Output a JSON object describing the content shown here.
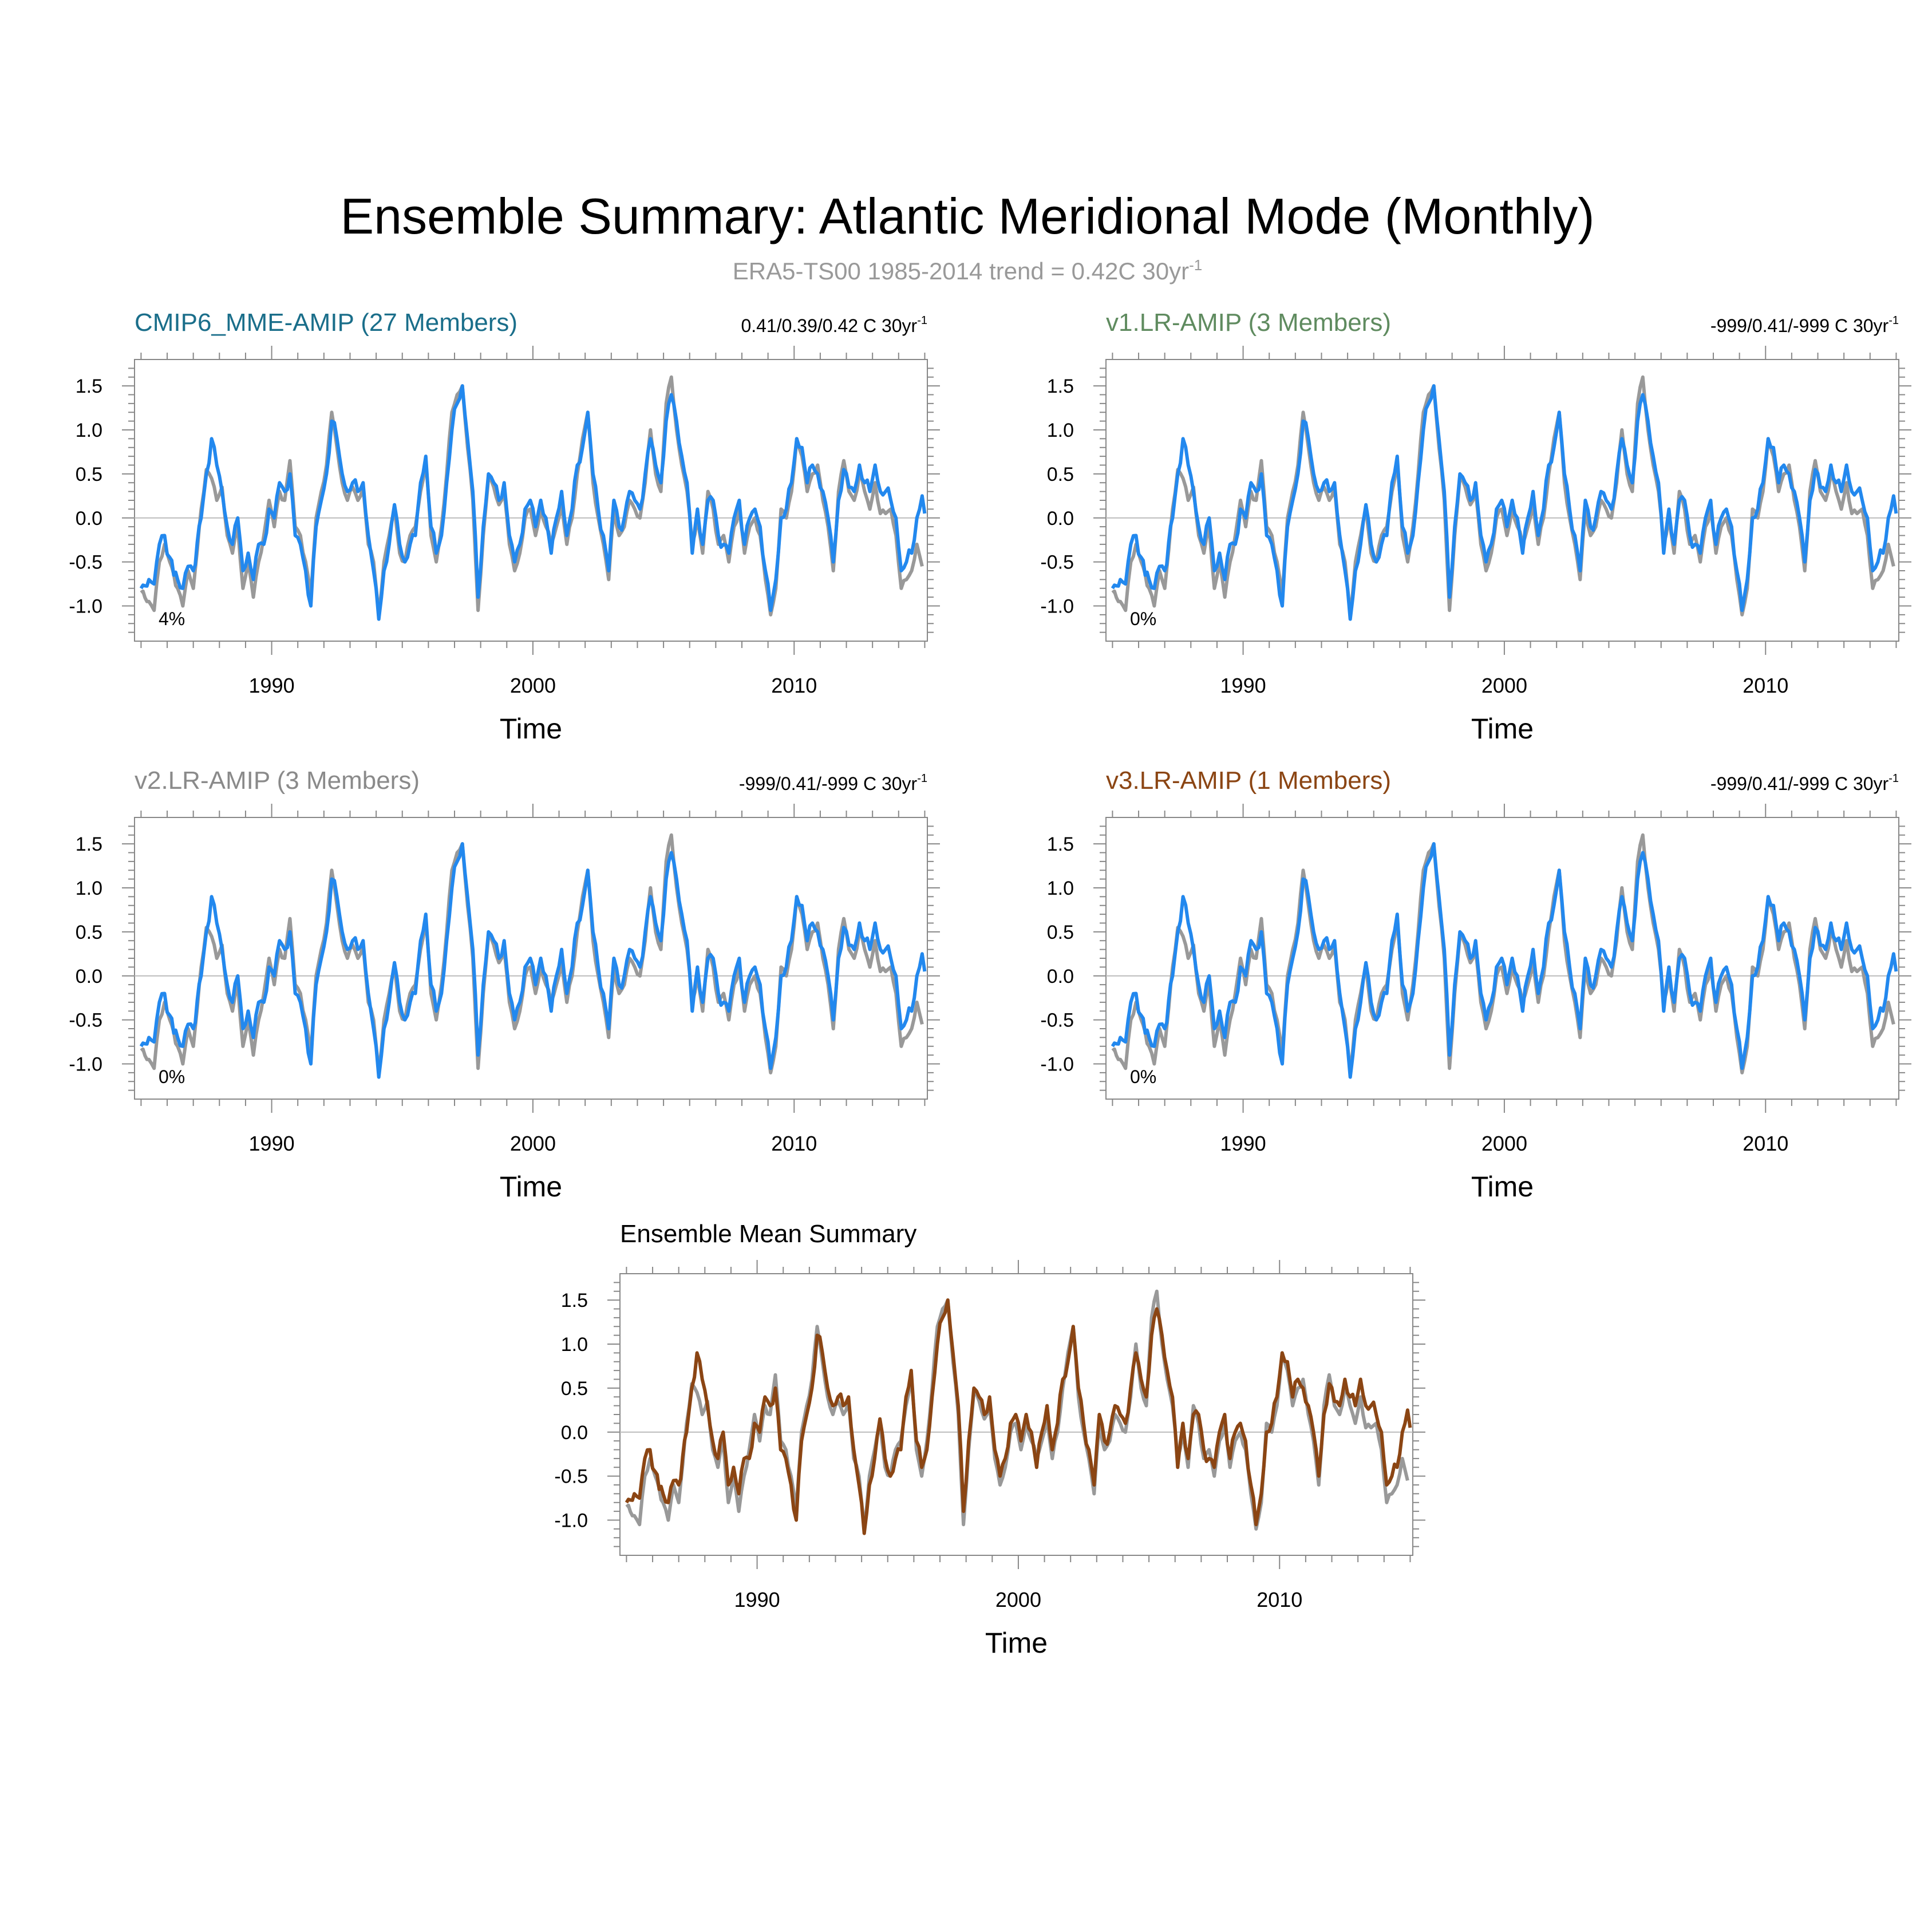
{
  "title": "Ensemble Summary: Atlantic Meridional Mode (Monthly)",
  "subtitle": {
    "text": "ERA5-TS00 1985-2014 trend = 0.42C 30yr",
    "superscript": "-1",
    "color": "#999999"
  },
  "colors": {
    "observation": "#999999",
    "model_line": "#2288ee",
    "mean_line": "#8b4513",
    "axis": "#888888",
    "zero_line": "#bbbbbb"
  },
  "chart_data": [
    {
      "type": "line",
      "title": "CMIP6_MME-AMIP (27 Members)",
      "title_color": "#1a6e8a",
      "trend_label": "0.41/0.39/0.42 C 30yr",
      "trend_superscript": "-1",
      "percent_label": "4%",
      "xlabel": "Time",
      "ylabel": "",
      "xlim": [
        1984.75,
        2015.1
      ],
      "ylim": [
        -1.4,
        1.8
      ],
      "xticks": [
        1990,
        2000,
        2010
      ],
      "yticks": [
        1.5,
        1.0,
        0.5,
        0.0,
        -0.5,
        -1.0
      ],
      "ytick_labels": [
        "1.5",
        "1.0",
        "0.5",
        "0.0",
        "-0.5",
        "-1.0"
      ],
      "grid": false,
      "series_style": "model"
    },
    {
      "type": "line",
      "title": "v1.LR-AMIP (3 Members)",
      "title_color": "#5f8b5f",
      "trend_label": "-999/0.41/-999 C 30yr",
      "trend_superscript": "-1",
      "percent_label": "0%",
      "xlabel": "Time",
      "ylabel": "",
      "xlim": [
        1984.75,
        2015.1
      ],
      "ylim": [
        -1.4,
        1.8
      ],
      "xticks": [
        1990,
        2000,
        2010
      ],
      "yticks": [
        1.5,
        1.0,
        0.5,
        0.0,
        -0.5,
        -1.0
      ],
      "ytick_labels": [
        "1.5",
        "1.0",
        "0.5",
        "0.0",
        "-0.5",
        "-1.0"
      ],
      "grid": false,
      "series_style": "model"
    },
    {
      "type": "line",
      "title": "v2.LR-AMIP (3 Members)",
      "title_color": "#8a8a8a",
      "trend_label": "-999/0.41/-999 C 30yr",
      "trend_superscript": "-1",
      "percent_label": "0%",
      "xlabel": "Time",
      "ylabel": "",
      "xlim": [
        1984.75,
        2015.1
      ],
      "ylim": [
        -1.4,
        1.8
      ],
      "xticks": [
        1990,
        2000,
        2010
      ],
      "yticks": [
        1.5,
        1.0,
        0.5,
        0.0,
        -0.5,
        -1.0
      ],
      "ytick_labels": [
        "1.5",
        "1.0",
        "0.5",
        "0.0",
        "-0.5",
        "-1.0"
      ],
      "grid": false,
      "series_style": "model"
    },
    {
      "type": "line",
      "title": "v3.LR-AMIP (1 Members)",
      "title_color": "#8b4513",
      "trend_label": "-999/0.41/-999 C 30yr",
      "trend_superscript": "-1",
      "percent_label": "0%",
      "xlabel": "Time",
      "ylabel": "",
      "xlim": [
        1984.75,
        2015.1
      ],
      "ylim": [
        -1.4,
        1.8
      ],
      "xticks": [
        1990,
        2000,
        2010
      ],
      "yticks": [
        1.5,
        1.0,
        0.5,
        0.0,
        -0.5,
        -1.0
      ],
      "ytick_labels": [
        "1.5",
        "1.0",
        "0.5",
        "0.0",
        "-0.5",
        "-1.0"
      ],
      "grid": false,
      "series_style": "model"
    },
    {
      "type": "line",
      "title": "Ensemble Mean Summary",
      "title_color": "#000000",
      "trend_label": "",
      "trend_superscript": "",
      "percent_label": "",
      "xlabel": "Time",
      "ylabel": "",
      "xlim": [
        1984.75,
        2015.1
      ],
      "ylim": [
        -1.4,
        1.8
      ],
      "xticks": [
        1990,
        2000,
        2010
      ],
      "yticks": [
        1.5,
        1.0,
        0.5,
        0.0,
        -0.5,
        -1.0
      ],
      "ytick_labels": [
        "1.5",
        "1.0",
        "0.5",
        "0.0",
        "-0.5",
        "-1.0"
      ],
      "grid": false,
      "series_style": "mean"
    }
  ],
  "series_data": {
    "observation_keypoints": [
      [
        1985.0,
        -0.85
      ],
      [
        1985.3,
        -0.95
      ],
      [
        1985.5,
        -1.05
      ],
      [
        1985.7,
        -0.5
      ],
      [
        1985.9,
        -0.3
      ],
      [
        1986.1,
        -0.5
      ],
      [
        1986.4,
        -0.8
      ],
      [
        1986.6,
        -1.0
      ],
      [
        1986.8,
        -0.6
      ],
      [
        1987.0,
        -0.8
      ],
      [
        1987.3,
        0.1
      ],
      [
        1987.5,
        0.55
      ],
      [
        1987.7,
        0.45
      ],
      [
        1987.9,
        0.2
      ],
      [
        1988.1,
        0.35
      ],
      [
        1988.3,
        -0.2
      ],
      [
        1988.5,
        -0.4
      ],
      [
        1988.7,
        -0.1
      ],
      [
        1988.9,
        -0.8
      ],
      [
        1989.1,
        -0.5
      ],
      [
        1989.3,
        -0.9
      ],
      [
        1989.5,
        -0.5
      ],
      [
        1989.7,
        -0.2
      ],
      [
        1989.9,
        0.2
      ],
      [
        1990.1,
        -0.1
      ],
      [
        1990.3,
        0.3
      ],
      [
        1990.5,
        0.2
      ],
      [
        1990.7,
        0.65
      ],
      [
        1990.9,
        -0.1
      ],
      [
        1991.1,
        -0.2
      ],
      [
        1991.3,
        -0.5
      ],
      [
        1991.5,
        -0.9
      ],
      [
        1991.7,
        0.0
      ],
      [
        1991.9,
        0.3
      ],
      [
        1992.1,
        0.6
      ],
      [
        1992.3,
        1.2
      ],
      [
        1992.5,
        0.8
      ],
      [
        1992.7,
        0.4
      ],
      [
        1992.9,
        0.2
      ],
      [
        1993.1,
        0.35
      ],
      [
        1993.3,
        0.2
      ],
      [
        1993.5,
        0.35
      ],
      [
        1993.7,
        -0.3
      ],
      [
        1993.9,
        -0.5
      ],
      [
        1994.1,
        -1.1
      ],
      [
        1994.3,
        -0.5
      ],
      [
        1994.5,
        -0.2
      ],
      [
        1994.7,
        0.1
      ],
      [
        1994.9,
        -0.4
      ],
      [
        1995.1,
        -0.5
      ],
      [
        1995.3,
        -0.2
      ],
      [
        1995.5,
        -0.1
      ],
      [
        1995.7,
        0.3
      ],
      [
        1995.9,
        0.65
      ],
      [
        1996.1,
        -0.2
      ],
      [
        1996.3,
        -0.5
      ],
      [
        1996.5,
        -0.1
      ],
      [
        1996.7,
        0.5
      ],
      [
        1996.9,
        1.2
      ],
      [
        1997.1,
        1.4
      ],
      [
        1997.3,
        1.5
      ],
      [
        1997.5,
        0.8
      ],
      [
        1997.7,
        0.2
      ],
      [
        1997.9,
        -1.05
      ],
      [
        1998.1,
        -0.2
      ],
      [
        1998.3,
        0.45
      ],
      [
        1998.5,
        0.35
      ],
      [
        1998.7,
        0.15
      ],
      [
        1998.9,
        0.3
      ],
      [
        1999.1,
        -0.3
      ],
      [
        1999.3,
        -0.6
      ],
      [
        1999.5,
        -0.4
      ],
      [
        1999.7,
        0.0
      ],
      [
        1999.9,
        0.1
      ],
      [
        2000.1,
        -0.2
      ],
      [
        2000.3,
        0.1
      ],
      [
        2000.5,
        -0.1
      ],
      [
        2000.7,
        -0.3
      ],
      [
        2000.9,
        -0.1
      ],
      [
        2001.1,
        0.15
      ],
      [
        2001.3,
        -0.3
      ],
      [
        2001.5,
        0.0
      ],
      [
        2001.7,
        0.5
      ],
      [
        2001.9,
        0.9
      ],
      [
        2002.1,
        1.2
      ],
      [
        2002.3,
        0.4
      ],
      [
        2002.5,
        0.0
      ],
      [
        2002.7,
        -0.3
      ],
      [
        2002.9,
        -0.7
      ],
      [
        2003.1,
        0.1
      ],
      [
        2003.3,
        -0.2
      ],
      [
        2003.5,
        -0.1
      ],
      [
        2003.7,
        0.2
      ],
      [
        2003.9,
        0.1
      ],
      [
        2004.1,
        0.0
      ],
      [
        2004.3,
        0.4
      ],
      [
        2004.5,
        1.0
      ],
      [
        2004.7,
        0.5
      ],
      [
        2004.9,
        0.3
      ],
      [
        2005.1,
        1.3
      ],
      [
        2005.3,
        1.6
      ],
      [
        2005.5,
        1.0
      ],
      [
        2005.7,
        0.6
      ],
      [
        2005.9,
        0.3
      ],
      [
        2006.1,
        -0.3
      ],
      [
        2006.3,
        0.0
      ],
      [
        2006.5,
        -0.4
      ],
      [
        2006.7,
        0.3
      ],
      [
        2006.9,
        0.1
      ],
      [
        2007.1,
        -0.3
      ],
      [
        2007.3,
        -0.2
      ],
      [
        2007.5,
        -0.5
      ],
      [
        2007.7,
        -0.1
      ],
      [
        2007.9,
        0.1
      ],
      [
        2008.1,
        -0.4
      ],
      [
        2008.3,
        -0.1
      ],
      [
        2008.5,
        0.0
      ],
      [
        2008.7,
        -0.2
      ],
      [
        2008.9,
        -0.7
      ],
      [
        2009.1,
        -1.1
      ],
      [
        2009.3,
        -0.8
      ],
      [
        2009.5,
        0.1
      ],
      [
        2009.7,
        0.0
      ],
      [
        2009.9,
        0.3
      ],
      [
        2010.1,
        0.9
      ],
      [
        2010.3,
        0.7
      ],
      [
        2010.5,
        0.3
      ],
      [
        2010.7,
        0.5
      ],
      [
        2010.9,
        0.6
      ],
      [
        2011.1,
        0.2
      ],
      [
        2011.3,
        -0.1
      ],
      [
        2011.5,
        -0.6
      ],
      [
        2011.7,
        0.3
      ],
      [
        2011.9,
        0.65
      ],
      [
        2012.1,
        0.3
      ],
      [
        2012.3,
        0.2
      ],
      [
        2012.5,
        0.5
      ],
      [
        2012.7,
        0.3
      ],
      [
        2012.9,
        0.1
      ],
      [
        2013.1,
        0.4
      ],
      [
        2013.3,
        0.05
      ],
      [
        2013.5,
        0.05
      ],
      [
        2013.7,
        0.1
      ],
      [
        2013.9,
        -0.2
      ],
      [
        2014.1,
        -0.8
      ],
      [
        2014.3,
        -0.7
      ],
      [
        2014.5,
        -0.6
      ],
      [
        2014.7,
        -0.3
      ],
      [
        2014.9,
        -0.55
      ]
    ],
    "model_keypoints": [
      [
        1985.0,
        -0.8
      ],
      [
        1985.3,
        -0.7
      ],
      [
        1985.5,
        -0.75
      ],
      [
        1985.7,
        -0.3
      ],
      [
        1985.9,
        -0.2
      ],
      [
        1986.1,
        -0.45
      ],
      [
        1986.4,
        -0.7
      ],
      [
        1986.6,
        -0.8
      ],
      [
        1986.8,
        -0.55
      ],
      [
        1987.0,
        -0.6
      ],
      [
        1987.3,
        0.0
      ],
      [
        1987.5,
        0.5
      ],
      [
        1987.7,
        0.9
      ],
      [
        1987.9,
        0.6
      ],
      [
        1988.1,
        0.3
      ],
      [
        1988.3,
        -0.1
      ],
      [
        1988.5,
        -0.3
      ],
      [
        1988.7,
        0.0
      ],
      [
        1988.9,
        -0.6
      ],
      [
        1989.1,
        -0.4
      ],
      [
        1989.3,
        -0.7
      ],
      [
        1989.5,
        -0.3
      ],
      [
        1989.7,
        -0.3
      ],
      [
        1989.9,
        0.1
      ],
      [
        1990.1,
        0.0
      ],
      [
        1990.3,
        0.4
      ],
      [
        1990.5,
        0.3
      ],
      [
        1990.7,
        0.5
      ],
      [
        1990.9,
        -0.2
      ],
      [
        1991.1,
        -0.3
      ],
      [
        1991.3,
        -0.6
      ],
      [
        1991.5,
        -1.0
      ],
      [
        1991.7,
        -0.1
      ],
      [
        1991.9,
        0.2
      ],
      [
        1992.1,
        0.5
      ],
      [
        1992.3,
        1.1
      ],
      [
        1992.5,
        0.9
      ],
      [
        1992.7,
        0.5
      ],
      [
        1992.9,
        0.3
      ],
      [
        1993.1,
        0.4
      ],
      [
        1993.3,
        0.3
      ],
      [
        1993.5,
        0.4
      ],
      [
        1993.7,
        -0.2
      ],
      [
        1993.9,
        -0.6
      ],
      [
        1994.1,
        -1.15
      ],
      [
        1994.3,
        -0.6
      ],
      [
        1994.5,
        -0.3
      ],
      [
        1994.7,
        0.15
      ],
      [
        1994.9,
        -0.3
      ],
      [
        1995.1,
        -0.5
      ],
      [
        1995.3,
        -0.3
      ],
      [
        1995.5,
        -0.2
      ],
      [
        1995.7,
        0.4
      ],
      [
        1995.9,
        0.7
      ],
      [
        1996.1,
        -0.1
      ],
      [
        1996.3,
        -0.4
      ],
      [
        1996.5,
        -0.2
      ],
      [
        1996.7,
        0.4
      ],
      [
        1996.9,
        1.0
      ],
      [
        1997.1,
        1.3
      ],
      [
        1997.3,
        1.5
      ],
      [
        1997.5,
        0.9
      ],
      [
        1997.7,
        0.3
      ],
      [
        1997.9,
        -0.9
      ],
      [
        1998.1,
        -0.1
      ],
      [
        1998.3,
        0.5
      ],
      [
        1998.5,
        0.4
      ],
      [
        1998.7,
        0.2
      ],
      [
        1998.9,
        0.4
      ],
      [
        1999.1,
        -0.2
      ],
      [
        1999.3,
        -0.5
      ],
      [
        1999.5,
        -0.3
      ],
      [
        1999.7,
        0.1
      ],
      [
        1999.9,
        0.2
      ],
      [
        2000.1,
        -0.1
      ],
      [
        2000.3,
        0.2
      ],
      [
        2000.5,
        0.0
      ],
      [
        2000.7,
        -0.4
      ],
      [
        2000.9,
        0.0
      ],
      [
        2001.1,
        0.3
      ],
      [
        2001.3,
        -0.2
      ],
      [
        2001.5,
        0.1
      ],
      [
        2001.7,
        0.6
      ],
      [
        2001.9,
        0.8
      ],
      [
        2002.1,
        1.2
      ],
      [
        2002.3,
        0.5
      ],
      [
        2002.5,
        0.1
      ],
      [
        2002.7,
        -0.2
      ],
      [
        2002.9,
        -0.6
      ],
      [
        2003.1,
        0.2
      ],
      [
        2003.3,
        -0.1
      ],
      [
        2003.5,
        0.0
      ],
      [
        2003.7,
        0.3
      ],
      [
        2003.9,
        0.2
      ],
      [
        2004.1,
        0.1
      ],
      [
        2004.3,
        0.5
      ],
      [
        2004.5,
        0.9
      ],
      [
        2004.7,
        0.6
      ],
      [
        2004.9,
        0.4
      ],
      [
        2005.1,
        1.1
      ],
      [
        2005.3,
        1.4
      ],
      [
        2005.5,
        1.1
      ],
      [
        2005.7,
        0.7
      ],
      [
        2005.9,
        0.4
      ],
      [
        2006.1,
        -0.4
      ],
      [
        2006.3,
        0.1
      ],
      [
        2006.5,
        -0.3
      ],
      [
        2006.7,
        0.2
      ],
      [
        2006.9,
        0.2
      ],
      [
        2007.1,
        -0.2
      ],
      [
        2007.3,
        -0.3
      ],
      [
        2007.5,
        -0.4
      ],
      [
        2007.7,
        0.0
      ],
      [
        2007.9,
        0.2
      ],
      [
        2008.1,
        -0.3
      ],
      [
        2008.3,
        0.0
      ],
      [
        2008.5,
        0.1
      ],
      [
        2008.7,
        -0.1
      ],
      [
        2008.9,
        -0.6
      ],
      [
        2009.1,
        -1.05
      ],
      [
        2009.3,
        -0.7
      ],
      [
        2009.5,
        0.0
      ],
      [
        2009.7,
        0.1
      ],
      [
        2009.9,
        0.4
      ],
      [
        2010.1,
        0.9
      ],
      [
        2010.3,
        0.8
      ],
      [
        2010.5,
        0.4
      ],
      [
        2010.7,
        0.6
      ],
      [
        2010.9,
        0.5
      ],
      [
        2011.1,
        0.3
      ],
      [
        2011.3,
        0.0
      ],
      [
        2011.5,
        -0.5
      ],
      [
        2011.7,
        0.2
      ],
      [
        2011.9,
        0.55
      ],
      [
        2012.1,
        0.35
      ],
      [
        2012.3,
        0.3
      ],
      [
        2012.5,
        0.6
      ],
      [
        2012.7,
        0.4
      ],
      [
        2012.9,
        0.3
      ],
      [
        2013.1,
        0.6
      ],
      [
        2013.3,
        0.3
      ],
      [
        2013.5,
        0.3
      ],
      [
        2013.7,
        0.2
      ],
      [
        2013.9,
        0.0
      ],
      [
        2014.1,
        -0.6
      ],
      [
        2014.3,
        -0.5
      ],
      [
        2014.5,
        -0.4
      ],
      [
        2014.7,
        0.0
      ],
      [
        2014.9,
        0.25
      ],
      [
        2015.0,
        0.05
      ]
    ]
  }
}
